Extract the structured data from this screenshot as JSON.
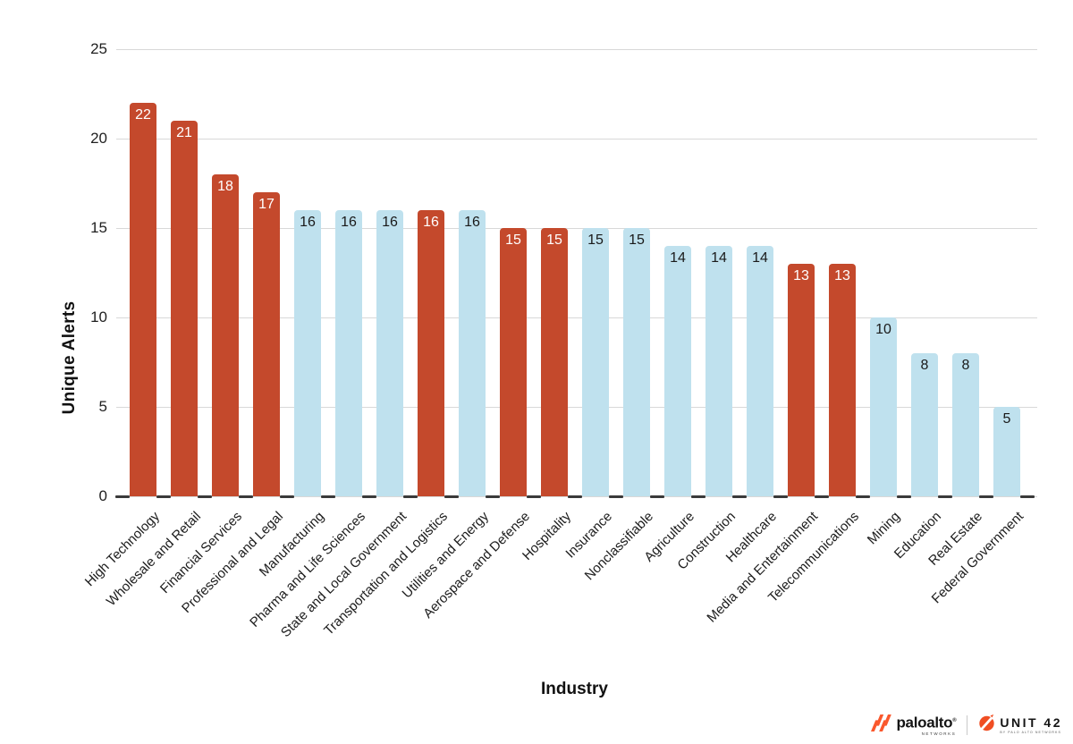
{
  "chart_data": {
    "type": "bar",
    "title": "",
    "xlabel": "Industry",
    "ylabel": "Unique Alerts",
    "ylim": [
      0,
      25
    ],
    "yticks": [
      25,
      20,
      15,
      10,
      5,
      0
    ],
    "grid": true,
    "legend": false,
    "categories": [
      "High Technology",
      "Wholesale and Retail",
      "Financial Services",
      "Professional and Legal",
      "Manufacturing",
      "Pharma and Life Sciences",
      "State and Local Government",
      "Transportation and Logistics",
      "Utilities and Energy",
      "Aerospace and Defense",
      "Hospitality",
      "Insurance",
      "Nonclassifiable",
      "Agriculture",
      "Construction",
      "Healthcare",
      "Media and Entertainment",
      "Telecommunications",
      "Mining",
      "Education",
      "Real Estate",
      "Federal Government"
    ],
    "values": [
      22,
      21,
      18,
      17,
      16,
      16,
      16,
      16,
      16,
      15,
      15,
      15,
      15,
      14,
      14,
      14,
      13,
      13,
      10,
      8,
      8,
      5
    ],
    "bar_colors": [
      "highlight",
      "highlight",
      "highlight",
      "highlight",
      "base",
      "base",
      "base",
      "highlight",
      "base",
      "highlight",
      "highlight",
      "base",
      "base",
      "base",
      "base",
      "base",
      "highlight",
      "highlight",
      "base",
      "base",
      "base",
      "base"
    ],
    "colors": {
      "highlight": "#C4492C",
      "base": "#BFE1EE",
      "highlight_label": "#FFFFFF",
      "base_label": "#1A1A1A",
      "gridline": "#D8D8D8",
      "baseline_tick": "#3A3A3A"
    }
  },
  "branding": {
    "paloalto_wordmark": "paloalto",
    "paloalto_reg": "®",
    "paloalto_sub": "NETWORKS",
    "unit42_wordmark": "UNIT 42",
    "unit42_sub": "BY PALO ALTO NETWORKS",
    "brand_orange": "#FA582D"
  }
}
